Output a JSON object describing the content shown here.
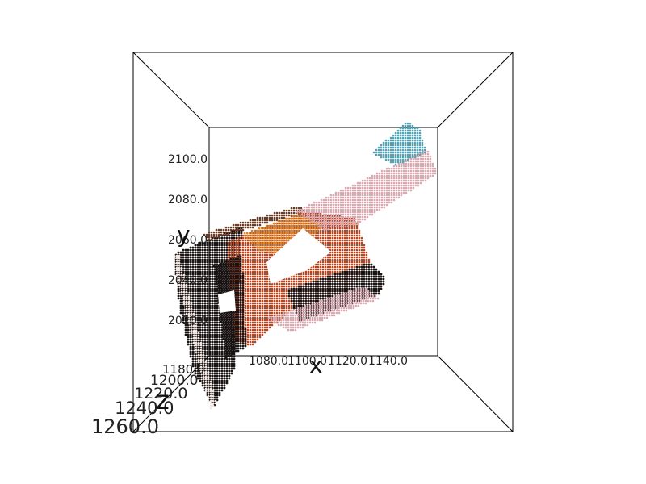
{
  "chart_data": {
    "type": "scatter",
    "projection": "3d-perspective",
    "xlabel": "x",
    "ylabel": "y",
    "zlabel": "z",
    "x_ticks": [
      "1080.0",
      "1100.0",
      "1120.0",
      "1140.0"
    ],
    "y_ticks": [
      "2100.0",
      "2080.0",
      "2060.0",
      "2040.0",
      "2020.0"
    ],
    "z_ticks": [
      "1180.0",
      "1200.0",
      "1220.0",
      "1240.0",
      "1260.0"
    ],
    "grid": false,
    "legend": "none",
    "colors": {
      "pink": "#d9a8b0",
      "dark": "#1a1414",
      "rust": "#b8451f",
      "orange": "#d9822b",
      "teal": "#4fa3b5",
      "brown": "#6b3a22",
      "white_edge": "#f2e6e0"
    }
  }
}
